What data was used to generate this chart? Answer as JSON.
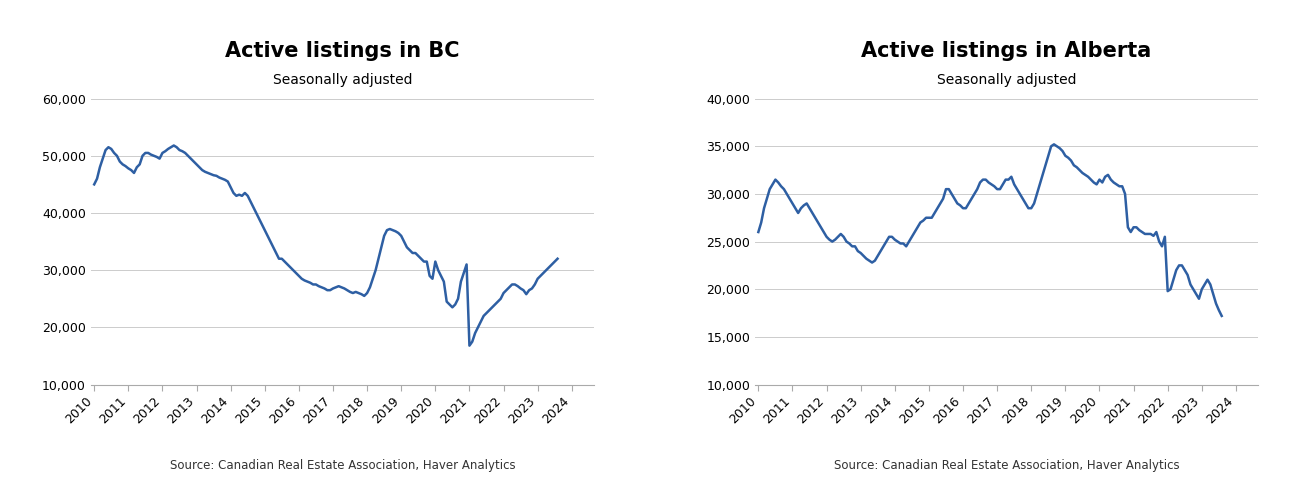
{
  "bc_title": "Active listings in BC",
  "bc_subtitle": "Seasonally adjusted",
  "ab_title": "Active listings in Alberta",
  "ab_subtitle": "Seasonally adjusted",
  "source_text": "Source: Canadian Real Estate Association, Haver Analytics",
  "line_color": "#2E5FA3",
  "line_width": 1.8,
  "bc_ylim": [
    10000,
    60000
  ],
  "bc_yticks": [
    10000,
    20000,
    30000,
    40000,
    50000,
    60000
  ],
  "ab_ylim": [
    10000,
    40000
  ],
  "ab_yticks": [
    10000,
    15000,
    20000,
    25000,
    30000,
    35000,
    40000
  ],
  "background_color": "#ffffff",
  "grid_color": "#cccccc",
  "title_fontsize": 15,
  "subtitle_fontsize": 10,
  "tick_fontsize": 9,
  "source_fontsize": 8.5,
  "bc_data": [
    45000,
    46000,
    48000,
    49500,
    51000,
    51500,
    51200,
    50500,
    50000,
    49000,
    48500,
    48200,
    47800,
    47500,
    47000,
    48000,
    48500,
    50000,
    50500,
    50500,
    50200,
    50000,
    49800,
    49500,
    50500,
    50800,
    51200,
    51500,
    51800,
    51500,
    51000,
    50800,
    50500,
    50000,
    49500,
    49000,
    48500,
    48000,
    47500,
    47200,
    47000,
    46800,
    46600,
    46500,
    46200,
    46000,
    45800,
    45500,
    44500,
    43500,
    43000,
    43200,
    43000,
    43500,
    43000,
    42000,
    41000,
    40000,
    39000,
    38000,
    37000,
    36000,
    35000,
    34000,
    33000,
    32000,
    32000,
    31500,
    31000,
    30500,
    30000,
    29500,
    29000,
    28500,
    28200,
    28000,
    27800,
    27500,
    27500,
    27200,
    27000,
    26800,
    26500,
    26500,
    26800,
    27000,
    27200,
    27000,
    26800,
    26500,
    26200,
    26000,
    26200,
    26000,
    25800,
    25500,
    26000,
    27000,
    28500,
    30000,
    32000,
    34000,
    36000,
    37000,
    37200,
    37000,
    36800,
    36500,
    36000,
    35000,
    34000,
    33500,
    33000,
    33000,
    32500,
    32000,
    31500,
    31500,
    29000,
    28500,
    31500,
    30000,
    29000,
    28000,
    24500,
    24000,
    23500,
    24000,
    25000,
    28000,
    29500,
    31000,
    16800,
    17500,
    19000,
    20000,
    21000,
    22000,
    22500,
    23000,
    23500,
    24000,
    24500,
    25000,
    26000,
    26500,
    27000,
    27500,
    27500,
    27200,
    26800,
    26500,
    25800,
    26500,
    26800,
    27500,
    28500,
    29000,
    29500,
    30000,
    30500,
    31000,
    31500,
    32000
  ],
  "ab_data": [
    26000,
    27000,
    28500,
    29500,
    30500,
    31000,
    31500,
    31200,
    30800,
    30500,
    30000,
    29500,
    29000,
    28500,
    28000,
    28500,
    28800,
    29000,
    28500,
    28000,
    27500,
    27000,
    26500,
    26000,
    25500,
    25200,
    25000,
    25200,
    25500,
    25800,
    25500,
    25000,
    24800,
    24500,
    24500,
    24000,
    23800,
    23500,
    23200,
    23000,
    22800,
    23000,
    23500,
    24000,
    24500,
    25000,
    25500,
    25500,
    25200,
    25000,
    24800,
    24800,
    24500,
    25000,
    25500,
    26000,
    26500,
    27000,
    27200,
    27500,
    27500,
    27500,
    28000,
    28500,
    29000,
    29500,
    30500,
    30500,
    30000,
    29500,
    29000,
    28800,
    28500,
    28500,
    29000,
    29500,
    30000,
    30500,
    31200,
    31500,
    31500,
    31200,
    31000,
    30800,
    30500,
    30500,
    31000,
    31500,
    31500,
    31800,
    31000,
    30500,
    30000,
    29500,
    29000,
    28500,
    28500,
    29000,
    30000,
    31000,
    32000,
    33000,
    34000,
    35000,
    35200,
    35000,
    34800,
    34500,
    34000,
    33800,
    33500,
    33000,
    32800,
    32500,
    32200,
    32000,
    31800,
    31500,
    31200,
    31000,
    31500,
    31200,
    31800,
    32000,
    31500,
    31200,
    31000,
    30800,
    30800,
    30000,
    26500,
    26000,
    26500,
    26500,
    26200,
    26000,
    25800,
    25800,
    25800,
    25600,
    26000,
    25000,
    24500,
    25500,
    19800,
    20000,
    21000,
    22000,
    22500,
    22500,
    22000,
    21500,
    20500,
    20000,
    19500,
    19000,
    20000,
    20500,
    21000,
    20500,
    19500,
    18500,
    17800,
    17200
  ]
}
